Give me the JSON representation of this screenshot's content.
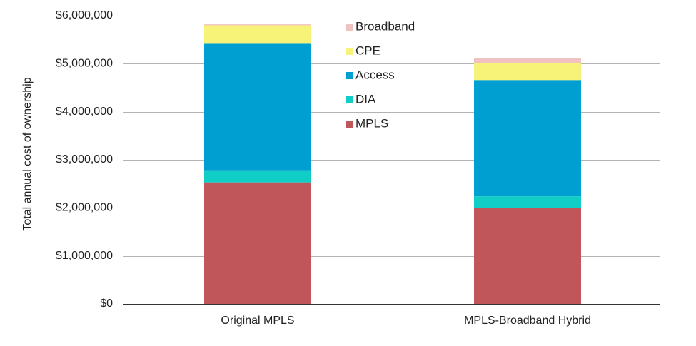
{
  "chart_data": {
    "type": "bar",
    "stacked": true,
    "categories": [
      "Original MPLS",
      "MPLS-Broadband Hybrid"
    ],
    "series": [
      {
        "name": "MPLS",
        "color": "#c0565a",
        "values": [
          2530000,
          2000000
        ]
      },
      {
        "name": "DIA",
        "color": "#10cdc5",
        "values": [
          250000,
          240000
        ]
      },
      {
        "name": "Access",
        "color": "#009fd1",
        "values": [
          2650000,
          2420000
        ]
      },
      {
        "name": "CPE",
        "color": "#f7f378",
        "values": [
          370000,
          350000
        ]
      },
      {
        "name": "Broadband",
        "color": "#f0c3c2",
        "values": [
          20000,
          110000
        ]
      }
    ],
    "ylabel": "Total annual cost of ownership",
    "ylim": [
      0,
      6000000
    ],
    "yticks": [
      0,
      1000000,
      2000000,
      3000000,
      4000000,
      5000000,
      6000000
    ],
    "ytick_labels": [
      "$0",
      "$1,000,000",
      "$2,000,000",
      "$3,000,000",
      "$4,000,000",
      "$5,000,000",
      "$6,000,000"
    ],
    "grid": true,
    "legend": {
      "placement": "top-center",
      "order": [
        "Broadband",
        "CPE",
        "Access",
        "DIA",
        "MPLS"
      ]
    }
  }
}
